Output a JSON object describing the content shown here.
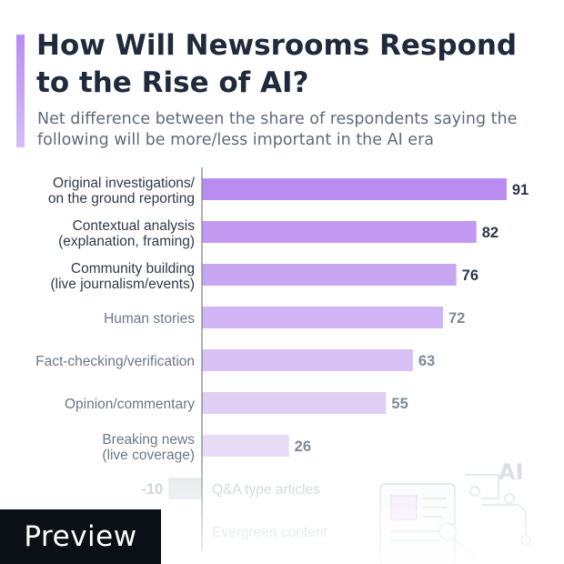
{
  "title": "How Will Newsrooms Respond to the Rise of AI?",
  "subtitle": "Net difference between the share of respondents saying the following will be more/less important in the AI era",
  "badge": "Preview",
  "decoration_icon": "ai-document-icon",
  "decoration_text": "AI",
  "colors": {
    "title": "#1f2b3d",
    "bar_top": "#b98cf0",
    "bar_bottom": "#e6dcf6",
    "negative_bar": "#e4e7ea"
  },
  "chart_data": {
    "type": "bar",
    "orientation": "horizontal",
    "title": "How Will Newsrooms Respond to the Rise of AI?",
    "subtitle": "Net difference between the share of respondents saying the following will be more/less important in the AI era",
    "categories": [
      [
        "Original investigations/",
        "on the ground reporting"
      ],
      [
        "Contextual analysis",
        "(explanation, framing)"
      ],
      [
        "Community building",
        "(live journalism/events)"
      ],
      [
        "Human stories"
      ],
      [
        "Fact-checking/verification"
      ],
      [
        "Opinion/commentary"
      ],
      [
        "Breaking news",
        "(live coverage)"
      ],
      [
        "Q&A type articles"
      ],
      [
        "Evergreen content"
      ]
    ],
    "values": [
      91,
      82,
      76,
      72,
      63,
      55,
      26,
      -10,
      null
    ],
    "value_labels": [
      "91",
      "82",
      "76",
      "72",
      "63",
      "55",
      "26",
      "-10",
      ""
    ],
    "xlim": [
      -14,
      100
    ],
    "grid": false,
    "legend": "none"
  }
}
